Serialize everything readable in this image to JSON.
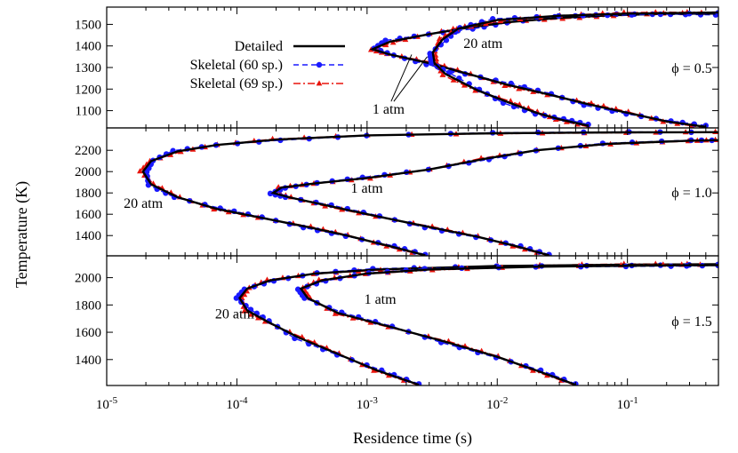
{
  "chart_data": {
    "type": "line",
    "xlabel": "Residence time (s)",
    "ylabel": "Temperature (K)",
    "x_scale": "log",
    "xlim": [
      1e-05,
      0.5
    ],
    "x_ticks": [
      1e-05,
      0.0001,
      0.001,
      0.01,
      0.1
    ],
    "x_tick_labels": [
      {
        "base": "10",
        "exp": "-5"
      },
      {
        "base": "10",
        "exp": "-4"
      },
      {
        "base": "10",
        "exp": "-3"
      },
      {
        "base": "10",
        "exp": "-2"
      },
      {
        "base": "10",
        "exp": "-1"
      }
    ],
    "legend": {
      "placement": "top-left of upper panel",
      "entries": [
        {
          "label": "Detailed",
          "color": "#000000",
          "dash": "solid",
          "marker": "none"
        },
        {
          "label": "Skeletal (60 sp.)",
          "color": "#1a1aff",
          "dash": "dashed",
          "marker": "circle"
        },
        {
          "label": "Skeletal (69 sp.)",
          "color": "#e8140c",
          "dash": "dash-dot",
          "marker": "triangle"
        }
      ]
    },
    "panels": [
      {
        "phi_label": "ϕ = 0.5",
        "ylim": [
          1020,
          1580
        ],
        "y_ticks": [
          1100,
          1200,
          1300,
          1400,
          1500
        ],
        "annotations": [
          {
            "text": "20 atm",
            "x": 0.0055,
            "y": 1390
          },
          {
            "text": "1 atm",
            "x": 0.0011,
            "y": 1085
          }
        ],
        "curves": [
          {
            "pressure": "20 atm",
            "detailed": [
              [
                0.4,
                1025
              ],
              [
                0.2,
                1050
              ],
              [
                0.1,
                1090
              ],
              [
                0.05,
                1130
              ],
              [
                0.025,
                1175
              ],
              [
                0.012,
                1220
              ],
              [
                0.006,
                1270
              ],
              [
                0.003,
                1320
              ],
              [
                0.0015,
                1360
              ],
              [
                0.0011,
                1385
              ],
              [
                0.0015,
                1420
              ],
              [
                0.003,
                1455
              ],
              [
                0.006,
                1485
              ],
              [
                0.012,
                1510
              ],
              [
                0.03,
                1530
              ],
              [
                0.08,
                1543
              ],
              [
                0.2,
                1549
              ],
              [
                0.5,
                1550
              ]
            ]
          },
          {
            "pressure": "1 atm",
            "detailed": [
              [
                0.05,
                1030
              ],
              [
                0.03,
                1060
              ],
              [
                0.02,
                1090
              ],
              [
                0.012,
                1140
              ],
              [
                0.007,
                1195
              ],
              [
                0.004,
                1270
              ],
              [
                0.0033,
                1320
              ],
              [
                0.0032,
                1370
              ],
              [
                0.0038,
                1430
              ],
              [
                0.005,
                1480
              ],
              [
                0.01,
                1520
              ],
              [
                0.03,
                1540
              ],
              [
                0.1,
                1550
              ],
              [
                0.5,
                1555
              ]
            ]
          }
        ]
      },
      {
        "phi_label": "ϕ = 1.0",
        "ylim": [
          1210,
          2410
        ],
        "y_ticks": [
          1400,
          1600,
          1800,
          2000,
          2200
        ],
        "annotations": [
          {
            "text": "20 atm",
            "x": 1.35e-05,
            "y": 1660
          },
          {
            "text": "1 atm",
            "x": 0.00075,
            "y": 1800
          }
        ],
        "curves": [
          {
            "pressure": "20 atm",
            "detailed": [
              [
                0.0028,
                1215
              ],
              [
                0.0015,
                1300
              ],
              [
                0.0007,
                1400
              ],
              [
                0.00035,
                1480
              ],
              [
                0.00015,
                1570
              ],
              [
                7e-05,
                1650
              ],
              [
                3.5e-05,
                1760
              ],
              [
                2.2e-05,
                1880
              ],
              [
                1.9e-05,
                2000
              ],
              [
                2.2e-05,
                2100
              ],
              [
                3.5e-05,
                2190
              ],
              [
                7e-05,
                2250
              ],
              [
                0.0002,
                2300
              ],
              [
                0.001,
                2340
              ],
              [
                0.01,
                2360
              ],
              [
                0.1,
                2368
              ],
              [
                0.5,
                2370
              ]
            ]
          },
          {
            "pressure": "1 atm",
            "detailed": [
              [
                0.025,
                1215
              ],
              [
                0.014,
                1300
              ],
              [
                0.007,
                1390
              ],
              [
                0.003,
                1480
              ],
              [
                0.0012,
                1580
              ],
              [
                0.0005,
                1680
              ],
              [
                0.00025,
                1760
              ],
              [
                0.00019,
                1800
              ],
              [
                0.00022,
                1850
              ],
              [
                0.0004,
                1890
              ],
              [
                0.001,
                1940
              ],
              [
                0.003,
                2020
              ],
              [
                0.008,
                2120
              ],
              [
                0.02,
                2200
              ],
              [
                0.07,
                2260
              ],
              [
                0.3,
                2290
              ],
              [
                0.5,
                2295
              ]
            ]
          }
        ]
      },
      {
        "phi_label": "ϕ = 1.5",
        "ylim": [
          1210,
          2160
        ],
        "y_ticks": [
          1400,
          1600,
          1800,
          2000
        ],
        "annotations": [
          {
            "text": "20 atm",
            "x": 6.8e-05,
            "y": 1700
          },
          {
            "text": "1 atm",
            "x": 0.00095,
            "y": 1810
          }
        ],
        "curves": [
          {
            "pressure": "20 atm",
            "detailed": [
              [
                0.0025,
                1215
              ],
              [
                0.0012,
                1320
              ],
              [
                0.0006,
                1440
              ],
              [
                0.0003,
                1560
              ],
              [
                0.00017,
                1680
              ],
              [
                0.00012,
                1760
              ],
              [
                0.000105,
                1850
              ],
              [
                0.00012,
                1920
              ],
              [
                0.00018,
                1980
              ],
              [
                0.0004,
                2030
              ],
              [
                0.0012,
                2060
              ],
              [
                0.01,
                2085
              ],
              [
                0.1,
                2095
              ],
              [
                0.5,
                2098
              ]
            ]
          },
          {
            "pressure": "1 atm",
            "detailed": [
              [
                0.04,
                1215
              ],
              [
                0.02,
                1320
              ],
              [
                0.01,
                1420
              ],
              [
                0.004,
                1530
              ],
              [
                0.0015,
                1640
              ],
              [
                0.0006,
                1740
              ],
              [
                0.00035,
                1850
              ],
              [
                0.00031,
                1920
              ],
              [
                0.00045,
                1980
              ],
              [
                0.001,
                2030
              ],
              [
                0.003,
                2060
              ],
              [
                0.02,
                2080
              ],
              [
                0.2,
                2090
              ],
              [
                0.5,
                2092
              ]
            ]
          }
        ]
      }
    ]
  }
}
